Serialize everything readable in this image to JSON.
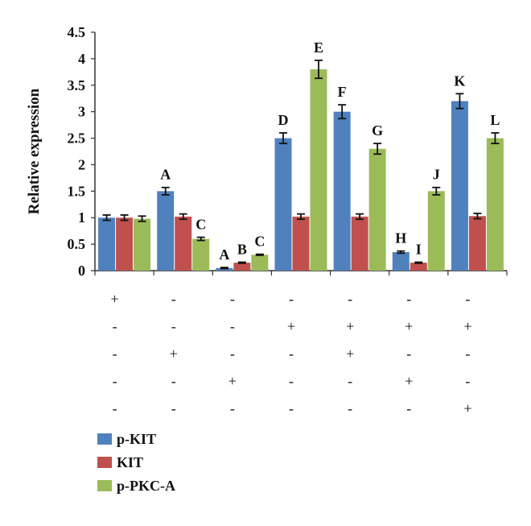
{
  "chart_data": {
    "type": "bar",
    "ylabel": "Relative expression",
    "ylim": [
      0,
      4.5
    ],
    "yticks": [
      "0",
      "0.5",
      "1",
      "1.5",
      "2",
      "2.5",
      "3",
      "3.5",
      "4",
      "4.5"
    ],
    "ytick_values": [
      0,
      0.5,
      1,
      1.5,
      2,
      2.5,
      3,
      3.5,
      4,
      4.5
    ],
    "grid": false,
    "legend_position": "bottom-left",
    "series": [
      {
        "name": "p-KIT",
        "color": "#4f81bd",
        "values": [
          1.0,
          1.5,
          0.05,
          2.5,
          3.0,
          0.35,
          3.2
        ],
        "errors": [
          0.05,
          0.07,
          0.01,
          0.1,
          0.13,
          0.02,
          0.14
        ],
        "labels": [
          "",
          "A",
          "A",
          "D",
          "F",
          "H",
          "K"
        ]
      },
      {
        "name": "KIT",
        "color": "#c0504d",
        "values": [
          1.0,
          1.02,
          0.15,
          1.02,
          1.02,
          0.15,
          1.03
        ],
        "errors": [
          0.05,
          0.05,
          0.01,
          0.05,
          0.05,
          0.01,
          0.05
        ],
        "labels": [
          "",
          "",
          "B",
          "",
          "",
          "I",
          ""
        ]
      },
      {
        "name": "p-PKC-A",
        "color": "#9bbb59",
        "values": [
          0.98,
          0.6,
          0.3,
          3.8,
          2.3,
          1.5,
          2.5
        ],
        "errors": [
          0.05,
          0.03,
          0.01,
          0.17,
          0.1,
          0.07,
          0.1
        ],
        "labels": [
          "",
          "C",
          "C",
          "E",
          "G",
          "J",
          "L"
        ]
      }
    ],
    "condition_rows": [
      [
        "+",
        "-",
        "-",
        "-",
        "-",
        "-",
        "-"
      ],
      [
        "-",
        "-",
        "-",
        "+",
        "+",
        "+",
        "+"
      ],
      [
        "-",
        "+",
        "-",
        "-",
        "+",
        "-",
        "-"
      ],
      [
        "-",
        "-",
        "+",
        "-",
        "-",
        "+",
        "-"
      ],
      [
        "-",
        "-",
        "-",
        "-",
        "-",
        "-",
        "+"
      ]
    ]
  }
}
